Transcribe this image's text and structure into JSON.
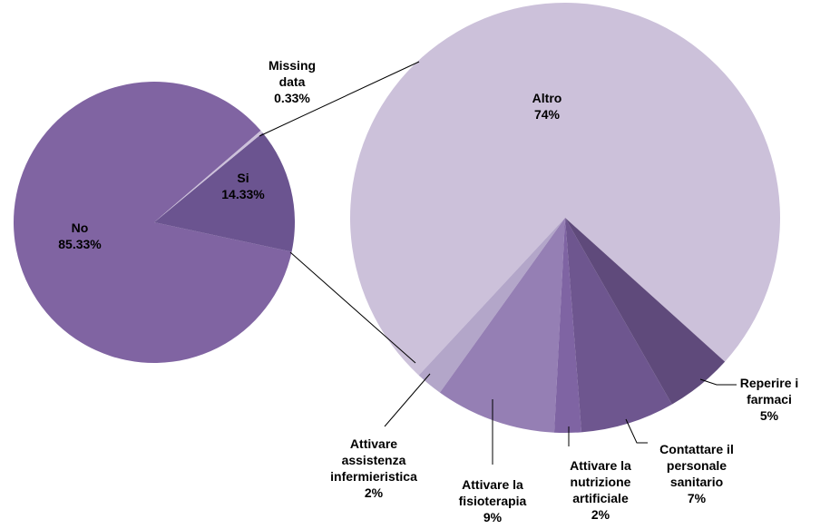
{
  "chart_data": [
    {
      "type": "pie",
      "categories": [
        "Missing data",
        "Si",
        "No"
      ],
      "values": [
        0.33,
        14.33,
        85.33
      ],
      "value_labels": [
        "0.33%",
        "14.33%",
        "85.33%"
      ],
      "colors": [
        "#ccc0da",
        "#6b5490",
        "#8064a2"
      ]
    },
    {
      "type": "pie",
      "categories": [
        "Reperire i farmaci",
        "Contattare il personale sanitario",
        "Attivare la nutrizione artificiale",
        "Attivare la fisioterapia",
        "Attivare assistenza infermieristica",
        "Altro"
      ],
      "values": [
        5,
        7,
        2,
        9,
        2,
        74
      ],
      "value_labels": [
        "5%",
        "7%",
        "2%",
        "9%",
        "2%",
        "74%"
      ],
      "colors": [
        "#5f4a7b",
        "#6e568f",
        "#7f64a3",
        "#957fb4",
        "#b3a6c9",
        "#ccc1da"
      ]
    }
  ]
}
